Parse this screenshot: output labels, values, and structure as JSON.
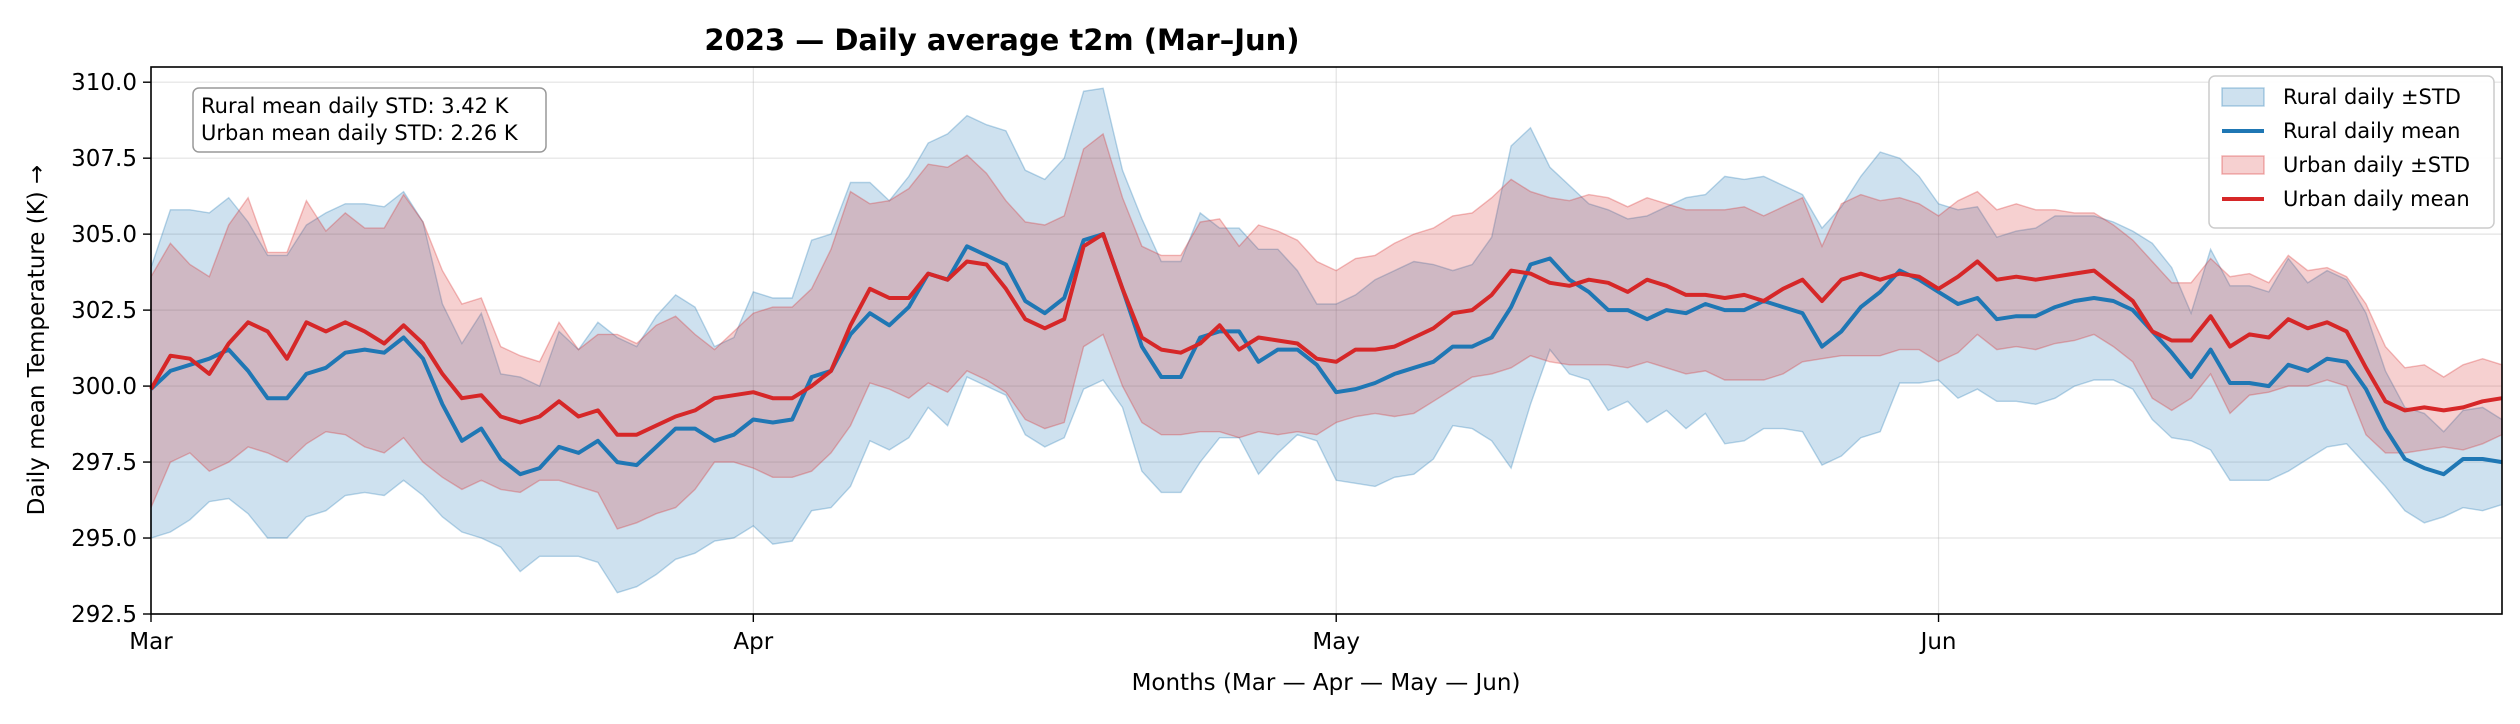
{
  "chart_data": {
    "type": "area",
    "title": "2023 — Daily average t2m (Mar–Jun)",
    "xlabel": "Months (Mar — Apr — May — Jun)",
    "ylabel": "Daily mean Temperature (K) →",
    "x_start": "2023-03-01",
    "x_end": "2023-06-30",
    "xlim": [
      "2023-03-01",
      "2023-06-30"
    ],
    "ylim": [
      292.5,
      310.5
    ],
    "x_ticks": [
      {
        "date": "2023-03-01",
        "label": "Mar"
      },
      {
        "date": "2023-04-01",
        "label": "Apr"
      },
      {
        "date": "2023-05-01",
        "label": "May"
      },
      {
        "date": "2023-06-01",
        "label": "Jun"
      }
    ],
    "y_ticks": [
      292.5,
      295.0,
      297.5,
      300.0,
      302.5,
      305.0,
      307.5,
      310.0
    ],
    "y_tick_labels": [
      "292.5",
      "295.0",
      "297.5",
      "300.0",
      "302.5",
      "305.0",
      "307.5",
      "310.0"
    ],
    "grid": true,
    "legend_position": "upper-right",
    "legend": [
      {
        "label": "Rural daily ±STD",
        "kind": "band",
        "series": "rural"
      },
      {
        "label": "Rural daily mean",
        "kind": "line",
        "series": "rural"
      },
      {
        "label": "Urban daily ±STD",
        "kind": "band",
        "series": "urban"
      },
      {
        "label": "Urban daily mean",
        "kind": "line",
        "series": "urban"
      }
    ],
    "annotation": [
      "Rural mean daily STD: 3.42 K",
      "Urban mean daily STD: 2.26 K"
    ],
    "series": [
      {
        "name": "Rural",
        "color": "#1f77b4",
        "band_color": "#1f77b4",
        "band_opacity": 0.22,
        "mean": [
          299.9,
          300.5,
          300.7,
          300.9,
          301.2,
          300.5,
          299.6,
          299.6,
          300.4,
          300.6,
          301.1,
          301.2,
          301.1,
          301.6,
          300.9,
          299.4,
          298.2,
          298.6,
          297.6,
          297.1,
          297.3,
          298.0,
          297.8,
          298.2,
          297.5,
          297.4,
          298.0,
          298.6,
          298.6,
          298.2,
          298.4,
          298.9,
          298.8,
          298.9,
          300.3,
          300.5,
          301.7,
          302.4,
          302.0,
          302.6,
          303.7,
          303.5,
          304.6,
          304.3,
          304.0,
          302.8,
          302.4,
          302.9,
          304.8,
          305.0,
          303.2,
          301.3,
          300.3,
          300.3,
          301.6,
          301.8,
          301.8,
          300.8,
          301.2,
          301.2,
          300.7,
          299.8,
          299.9,
          300.1,
          300.4,
          300.6,
          300.8,
          301.3,
          301.3,
          301.6,
          302.6,
          304.0,
          304.2,
          303.5,
          303.1,
          302.5,
          302.5,
          302.2,
          302.5,
          302.4,
          302.7,
          302.5,
          302.5,
          302.8,
          302.6,
          302.4,
          301.3,
          301.8,
          302.6,
          303.1,
          303.8,
          303.5,
          303.1,
          302.7,
          302.9,
          302.2,
          302.3,
          302.3,
          302.6,
          302.8,
          302.9,
          302.8,
          302.5,
          301.8,
          301.1,
          300.3,
          301.2,
          300.1,
          300.1,
          300.0,
          300.7,
          300.5,
          300.9,
          300.8,
          299.9,
          298.6,
          297.6,
          297.3,
          297.1,
          297.6,
          297.6,
          297.5
        ],
        "upper": [
          303.9,
          305.8,
          305.8,
          305.7,
          306.2,
          305.4,
          304.3,
          304.3,
          305.3,
          305.7,
          306.0,
          306.0,
          305.9,
          306.4,
          305.4,
          302.7,
          301.4,
          302.4,
          300.4,
          300.3,
          300.0,
          301.8,
          301.2,
          302.1,
          301.6,
          301.3,
          302.3,
          303.0,
          302.6,
          301.3,
          301.6,
          303.1,
          302.9,
          302.9,
          304.8,
          305.0,
          306.7,
          306.7,
          306.1,
          306.9,
          308.0,
          308.3,
          308.9,
          308.6,
          308.4,
          307.1,
          306.8,
          307.5,
          309.7,
          309.8,
          307.1,
          305.5,
          304.1,
          304.1,
          305.7,
          305.2,
          305.2,
          304.5,
          304.5,
          303.8,
          302.7,
          302.7,
          303.0,
          303.5,
          303.8,
          304.1,
          304.0,
          303.8,
          304.0,
          304.9,
          307.9,
          308.5,
          307.2,
          306.6,
          306.0,
          305.8,
          305.5,
          305.6,
          305.9,
          306.2,
          306.3,
          306.9,
          306.8,
          306.9,
          306.6,
          306.3,
          305.2,
          305.9,
          306.9,
          307.7,
          307.5,
          306.9,
          306.0,
          305.8,
          305.9,
          304.9,
          305.1,
          305.2,
          305.6,
          305.6,
          305.6,
          305.4,
          305.1,
          304.7,
          303.9,
          302.4,
          304.5,
          303.3,
          303.3,
          303.1,
          304.2,
          303.4,
          303.8,
          303.5,
          302.4,
          300.5,
          299.3,
          299.1,
          298.5,
          299.2,
          299.3,
          298.9
        ],
        "lower": [
          295.0,
          295.2,
          295.6,
          296.2,
          296.3,
          295.8,
          295.0,
          295.0,
          295.7,
          295.9,
          296.4,
          296.5,
          296.4,
          296.9,
          296.4,
          295.7,
          295.2,
          295.0,
          294.7,
          293.9,
          294.4,
          294.4,
          294.4,
          294.2,
          293.2,
          293.4,
          293.8,
          294.3,
          294.5,
          294.9,
          295.0,
          295.4,
          294.8,
          294.9,
          295.9,
          296.0,
          296.7,
          298.2,
          297.9,
          298.3,
          299.3,
          298.7,
          300.3,
          300.0,
          299.7,
          298.4,
          298.0,
          298.3,
          299.9,
          300.2,
          299.3,
          297.2,
          296.5,
          296.5,
          297.5,
          298.3,
          298.3,
          297.1,
          297.8,
          298.4,
          298.2,
          296.9,
          296.8,
          296.7,
          297.0,
          297.1,
          297.6,
          298.7,
          298.6,
          298.2,
          297.3,
          299.4,
          301.2,
          300.4,
          300.2,
          299.2,
          299.5,
          298.8,
          299.2,
          298.6,
          299.1,
          298.1,
          298.2,
          298.6,
          298.6,
          298.5,
          297.4,
          297.7,
          298.3,
          298.5,
          300.1,
          300.1,
          300.2,
          299.6,
          299.9,
          299.5,
          299.5,
          299.4,
          299.6,
          300.0,
          300.2,
          300.2,
          299.9,
          298.9,
          298.3,
          298.2,
          297.9,
          296.9,
          296.9,
          296.9,
          297.2,
          297.6,
          298.0,
          298.1,
          297.4,
          296.7,
          295.9,
          295.5,
          295.7,
          296.0,
          295.9,
          296.1
        ]
      },
      {
        "name": "Urban",
        "color": "#d62728",
        "band_color": "#d62728",
        "band_opacity": 0.22,
        "mean": [
          299.9,
          301.0,
          300.9,
          300.4,
          301.4,
          302.1,
          301.8,
          300.9,
          302.1,
          301.8,
          302.1,
          301.8,
          301.4,
          302.0,
          301.4,
          300.4,
          299.6,
          299.7,
          299.0,
          298.8,
          299.0,
          299.5,
          299.0,
          299.2,
          298.4,
          298.4,
          298.7,
          299.0,
          299.2,
          299.6,
          299.7,
          299.8,
          299.6,
          299.6,
          300.0,
          300.5,
          302.0,
          303.2,
          302.9,
          302.9,
          303.7,
          303.5,
          304.1,
          304.0,
          303.2,
          302.2,
          301.9,
          302.2,
          304.6,
          305.0,
          303.2,
          301.6,
          301.2,
          301.1,
          301.4,
          302.0,
          301.2,
          301.6,
          301.5,
          301.4,
          300.9,
          300.8,
          301.2,
          301.2,
          301.3,
          301.6,
          301.9,
          302.4,
          302.5,
          303.0,
          303.8,
          303.7,
          303.4,
          303.3,
          303.5,
          303.4,
          303.1,
          303.5,
          303.3,
          303.0,
          303.0,
          302.9,
          303.0,
          302.8,
          303.2,
          303.5,
          302.8,
          303.5,
          303.7,
          303.5,
          303.7,
          303.6,
          303.2,
          303.6,
          304.1,
          303.5,
          303.6,
          303.5,
          303.6,
          303.7,
          303.8,
          303.3,
          302.8,
          301.8,
          301.5,
          301.5,
          302.3,
          301.3,
          301.7,
          301.6,
          302.2,
          301.9,
          302.1,
          301.8,
          300.6,
          299.5,
          299.2,
          299.3,
          299.2,
          299.3,
          299.5,
          299.6
        ],
        "upper": [
          303.6,
          304.7,
          304.0,
          303.6,
          305.3,
          306.2,
          304.4,
          304.4,
          306.1,
          305.1,
          305.7,
          305.2,
          305.2,
          306.3,
          305.4,
          303.8,
          302.7,
          302.9,
          301.3,
          301.0,
          300.8,
          302.1,
          301.2,
          301.7,
          301.7,
          301.4,
          302.0,
          302.3,
          301.7,
          301.2,
          301.8,
          302.4,
          302.6,
          302.6,
          303.2,
          304.5,
          306.4,
          306.0,
          306.1,
          306.5,
          307.3,
          307.2,
          307.6,
          307.0,
          306.1,
          305.4,
          305.3,
          305.6,
          307.8,
          308.3,
          306.2,
          304.6,
          304.3,
          304.3,
          305.4,
          305.5,
          304.6,
          305.3,
          305.1,
          304.8,
          304.1,
          303.8,
          304.2,
          304.3,
          304.7,
          305.0,
          305.2,
          305.6,
          305.7,
          306.2,
          306.8,
          306.4,
          306.2,
          306.1,
          306.3,
          306.2,
          305.9,
          306.2,
          306.0,
          305.8,
          305.8,
          305.8,
          305.9,
          305.6,
          305.9,
          306.2,
          304.6,
          306.0,
          306.3,
          306.1,
          306.2,
          306.0,
          305.6,
          306.1,
          306.4,
          305.8,
          306.0,
          305.8,
          305.8,
          305.7,
          305.7,
          305.3,
          304.8,
          304.1,
          303.4,
          303.4,
          304.2,
          303.6,
          303.7,
          303.4,
          304.3,
          303.8,
          303.9,
          303.6,
          302.7,
          301.3,
          300.6,
          300.7,
          300.3,
          300.7,
          300.9,
          300.7
        ],
        "lower": [
          296.0,
          297.5,
          297.8,
          297.2,
          297.5,
          298.0,
          297.8,
          297.5,
          298.1,
          298.5,
          298.4,
          298.0,
          297.8,
          298.3,
          297.5,
          297.0,
          296.6,
          296.9,
          296.6,
          296.5,
          296.9,
          296.9,
          296.7,
          296.5,
          295.3,
          295.5,
          295.8,
          296.0,
          296.6,
          297.5,
          297.5,
          297.3,
          297.0,
          297.0,
          297.2,
          297.8,
          298.7,
          300.1,
          299.9,
          299.6,
          300.1,
          299.8,
          300.5,
          300.2,
          299.8,
          298.9,
          298.6,
          298.8,
          301.3,
          301.7,
          300.0,
          298.8,
          298.4,
          298.4,
          298.5,
          298.5,
          298.3,
          298.5,
          298.4,
          298.5,
          298.4,
          298.8,
          299.0,
          299.1,
          299.0,
          299.1,
          299.5,
          299.9,
          300.3,
          300.4,
          300.6,
          301.0,
          300.8,
          300.7,
          300.7,
          300.7,
          300.6,
          300.8,
          300.6,
          300.4,
          300.5,
          300.2,
          300.2,
          300.2,
          300.4,
          300.8,
          300.9,
          301.0,
          301.0,
          301.0,
          301.2,
          301.2,
          300.8,
          301.1,
          301.7,
          301.2,
          301.3,
          301.2,
          301.4,
          301.5,
          301.7,
          301.3,
          300.8,
          299.6,
          299.2,
          299.6,
          300.4,
          299.1,
          299.7,
          299.8,
          300.0,
          300.0,
          300.2,
          300.0,
          298.4,
          297.8,
          297.8,
          297.9,
          298.0,
          297.9,
          298.1,
          298.4
        ]
      }
    ]
  }
}
